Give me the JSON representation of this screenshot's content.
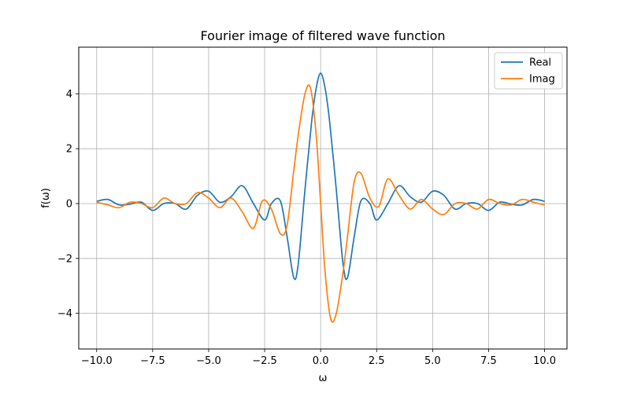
{
  "chart_data": {
    "type": "line",
    "title": "Fourier image of filtered wave function",
    "xlabel": "ω",
    "ylabel": "f(ω)",
    "xlim": [
      -10.8,
      11.0
    ],
    "ylim": [
      -5.3,
      5.7
    ],
    "xticks": [
      -10.0,
      -7.5,
      -5.0,
      -2.5,
      0.0,
      2.5,
      5.0,
      7.5,
      10.0
    ],
    "xtick_labels": [
      "−10.0",
      "−7.5",
      "−5.0",
      "−2.5",
      "0.0",
      "2.5",
      "5.0",
      "7.5",
      "10.0"
    ],
    "yticks": [
      -4,
      -2,
      0,
      2,
      4
    ],
    "ytick_labels": [
      "−4",
      "−2",
      "0",
      "2",
      "4"
    ],
    "grid": true,
    "legend": "top-right",
    "series": [
      {
        "name": "Real",
        "color": "#1f77b4",
        "x": [
          -10.0,
          -9.5,
          -9.0,
          -8.5,
          -8.0,
          -7.5,
          -7.0,
          -6.5,
          -6.0,
          -5.5,
          -5.0,
          -4.5,
          -4.0,
          -3.5,
          -3.0,
          -2.5,
          -2.2,
          -1.8,
          -1.5,
          -1.2,
          -1.0,
          -0.7,
          -0.4,
          -0.2,
          0.0,
          0.2,
          0.4,
          0.7,
          1.0,
          1.2,
          1.5,
          1.8,
          2.2,
          2.5,
          3.0,
          3.5,
          4.0,
          4.5,
          5.0,
          5.5,
          6.0,
          6.5,
          7.0,
          7.5,
          8.0,
          8.5,
          9.0,
          9.5,
          10.0
        ],
        "y": [
          0.08,
          0.15,
          -0.05,
          -0.02,
          0.05,
          -0.25,
          0.0,
          0.0,
          -0.2,
          0.3,
          0.45,
          0.05,
          0.25,
          0.65,
          0.0,
          -0.6,
          0.0,
          0.1,
          -1.2,
          -2.7,
          -2.2,
          0.5,
          3.0,
          4.2,
          4.75,
          4.2,
          3.0,
          0.5,
          -2.2,
          -2.7,
          -1.2,
          0.1,
          0.0,
          -0.6,
          0.0,
          0.65,
          0.25,
          0.05,
          0.45,
          0.3,
          -0.2,
          0.0,
          0.0,
          -0.25,
          0.05,
          -0.02,
          -0.05,
          0.15,
          0.08
        ]
      },
      {
        "name": "Imag",
        "color": "#ff7f0e",
        "x": [
          -10.0,
          -9.5,
          -9.0,
          -8.5,
          -8.0,
          -7.5,
          -7.0,
          -6.5,
          -6.0,
          -5.5,
          -5.0,
          -4.5,
          -4.0,
          -3.5,
          -3.0,
          -2.6,
          -2.2,
          -1.8,
          -1.5,
          -1.2,
          -1.0,
          -0.7,
          -0.45,
          -0.2,
          0.0,
          0.2,
          0.45,
          0.7,
          1.0,
          1.2,
          1.5,
          1.8,
          2.2,
          2.6,
          3.0,
          3.5,
          4.0,
          4.5,
          5.0,
          5.5,
          6.0,
          6.5,
          7.0,
          7.5,
          8.0,
          8.5,
          9.0,
          9.5,
          10.0
        ],
        "y": [
          0.05,
          -0.05,
          -0.15,
          0.05,
          0.0,
          -0.15,
          0.2,
          0.0,
          0.0,
          0.4,
          0.2,
          -0.15,
          0.2,
          -0.3,
          -0.9,
          0.1,
          -0.2,
          -1.1,
          -0.8,
          1.2,
          2.5,
          4.0,
          4.2,
          2.5,
          0.0,
          -2.5,
          -4.2,
          -4.0,
          -2.5,
          -1.2,
          0.8,
          1.1,
          0.2,
          -0.1,
          0.9,
          0.3,
          -0.2,
          0.15,
          -0.2,
          -0.4,
          0.0,
          0.0,
          -0.2,
          0.15,
          0.0,
          -0.05,
          0.15,
          0.05,
          -0.05
        ]
      }
    ]
  }
}
